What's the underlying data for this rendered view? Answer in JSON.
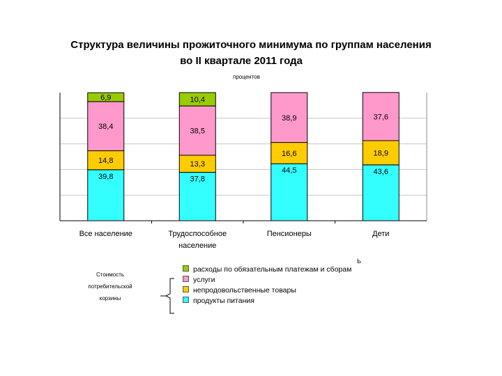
{
  "chart_data": {
    "type": "bar",
    "stacked": true,
    "title": "Структура величины прожиточного минимума по группам населения",
    "subtitle": "во  II квартале 2011 года",
    "unit_label": "процентов",
    "categories": [
      "Все население",
      "Трудоспособное население",
      "Пенсионеры",
      "Дети"
    ],
    "series": [
      {
        "name": "продукты питания",
        "color": "#33ffff",
        "values": [
          39.8,
          37.8,
          44.5,
          43.6
        ],
        "labels": [
          "39,8",
          "37,8",
          "44,5",
          "43,6"
        ]
      },
      {
        "name": "непродовольственные товары",
        "color": "#ffcc00",
        "values": [
          14.8,
          13.3,
          16.6,
          18.9
        ],
        "labels": [
          "14,8",
          "13,3",
          "16,6",
          "18,9"
        ]
      },
      {
        "name": "услуги",
        "color": "#ff99cc",
        "values": [
          38.4,
          38.5,
          38.9,
          37.6
        ],
        "labels": [
          "38,4",
          "38,5",
          "38,9",
          "37,6"
        ]
      },
      {
        "name": "расходы по обязательным платежам и сборам",
        "color": "#99cc00",
        "values": [
          6.9,
          10.4,
          0,
          0
        ],
        "labels": [
          "6,9",
          "10,4",
          "",
          ""
        ]
      }
    ],
    "ylim": [
      0,
      100
    ],
    "grid": true,
    "legend_position": "bottom"
  },
  "legend": {
    "group_label": "Стоимость потребительской корзины"
  },
  "stray_mark": "Ь"
}
